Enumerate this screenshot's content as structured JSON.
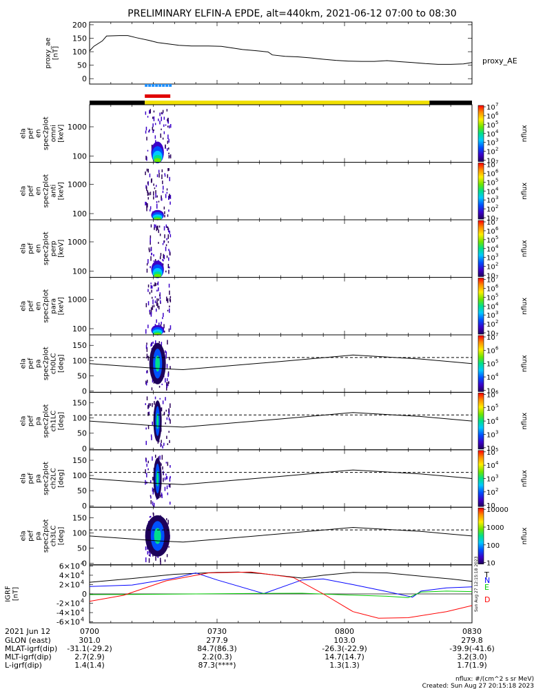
{
  "page": {
    "title": "PRELIMINARY ELFIN-A EPDE, alt=440km, 2021-06-12 07:00 to 08:30",
    "footer_units": "nflux: #/(cm^2 s sr MeV)",
    "footer_created": "Created: Sun Aug 27 20:15:18 2023",
    "side_stamp": "Sun Aug 27 12:15:18 2023"
  },
  "colors": {
    "ae_line": "#000000",
    "sci_zone_bar": "#1e90ff",
    "fgm_bar": "#e00000",
    "orbit_day": "#f0e000",
    "orbit_night": "#000000",
    "igrf_T": "#000000",
    "igrf_N": "#0000ff",
    "igrf_E": "#00cc00",
    "igrf_D": "#ff0000"
  },
  "chart_data": {
    "type": "multi-panel",
    "time_axis": {
      "start": "07:00",
      "end": "08:30",
      "tick_times": [
        "07:00",
        "07:30",
        "08:00",
        "08:30"
      ],
      "tick_labels": [
        "0700",
        "0730",
        "0800",
        "0830"
      ]
    },
    "science_window": [
      "07:13",
      "07:19"
    ],
    "orbit_day_interval": [
      "07:13",
      "08:20"
    ],
    "ae": {
      "ylabel": [
        "proxy_ae",
        "[nT]"
      ],
      "series_name": "proxy_AE",
      "ylim": [
        -20,
        210
      ],
      "yticks": [
        0,
        50,
        100,
        150,
        200
      ],
      "t_min": [
        0,
        1,
        3,
        4,
        7,
        9,
        11,
        14,
        16,
        19,
        21,
        24,
        28,
        31,
        34,
        36,
        39,
        42,
        43,
        46,
        49,
        52,
        55,
        58,
        61,
        64,
        67,
        70,
        73,
        76,
        79,
        82,
        85,
        88,
        90
      ],
      "values": [
        103,
        120,
        140,
        158,
        160,
        160,
        152,
        142,
        134,
        128,
        124,
        121,
        121,
        120,
        113,
        108,
        104,
        99,
        88,
        83,
        81,
        77,
        72,
        68,
        65,
        64,
        64,
        67,
        63,
        60,
        56,
        53,
        53,
        55,
        60
      ]
    },
    "spectrograms": [
      {
        "ylabel": [
          "ela",
          "pef",
          "en",
          "spec2plot",
          "omni",
          "[keV]"
        ],
        "yticks": [
          "100",
          "1000"
        ],
        "cbar_label": "nflux",
        "cbar_ticks": [
          "10",
          "2",
          "3",
          "4",
          "5",
          "6",
          "7"
        ],
        "cbar_style": "power"
      },
      {
        "ylabel": [
          "ela",
          "pef",
          "en",
          "spec2plot",
          "anti",
          "[keV]"
        ],
        "yticks": [
          "100",
          "1000"
        ],
        "cbar_label": "nflux",
        "cbar_ticks": [
          "10",
          "2",
          "3",
          "4",
          "5",
          "6",
          "7"
        ],
        "cbar_style": "power"
      },
      {
        "ylabel": [
          "ela",
          "pef",
          "en",
          "spec2plot",
          "perp",
          "[keV]"
        ],
        "yticks": [
          "100",
          "1000"
        ],
        "cbar_label": "nflux",
        "cbar_ticks": [
          "10",
          "2",
          "3",
          "4",
          "5",
          "6",
          "7"
        ],
        "cbar_style": "power"
      },
      {
        "ylabel": [
          "ela",
          "pef",
          "en",
          "spec2plot",
          "para",
          "[keV]"
        ],
        "yticks": [
          "100",
          "1000"
        ],
        "cbar_label": "nflux",
        "cbar_ticks": [
          "10",
          "2",
          "3",
          "4",
          "5",
          "6",
          "7"
        ],
        "cbar_style": "power"
      }
    ],
    "pitch_angle_panels": [
      {
        "ylabel": [
          "ela",
          "pef",
          "pa",
          "spec2plot",
          "ch0LC",
          "[deg]"
        ],
        "yticks": [
          0,
          50,
          100,
          150
        ],
        "cbar_label": "nflux",
        "cbar_ticks": [
          "10",
          "4",
          "5",
          "6",
          "7"
        ],
        "cbar_style": "power"
      },
      {
        "ylabel": [
          "ela",
          "pef",
          "pa",
          "spec2plot",
          "ch1LC",
          "[deg]"
        ],
        "yticks": [
          0,
          50,
          100,
          150
        ],
        "cbar_label": "nflux",
        "cbar_ticks": [
          "10",
          "3",
          "4",
          "5",
          "6"
        ],
        "cbar_style": "power"
      },
      {
        "ylabel": [
          "ela",
          "pef",
          "pa",
          "spec2plot",
          "ch2LC",
          "[deg]"
        ],
        "yticks": [
          0,
          50,
          100,
          150
        ],
        "cbar_label": "nflux",
        "cbar_ticks": [
          "10",
          "2",
          "3",
          "4",
          "5"
        ],
        "cbar_style": "power"
      },
      {
        "ylabel": [
          "ela",
          "pef",
          "pa",
          "spec2plot",
          "ch3LC",
          "[deg]"
        ],
        "yticks": [
          0,
          50,
          100,
          150
        ],
        "cbar_label": "nflux",
        "cbar_ticks": [
          "10",
          "100",
          "1000",
          "10000"
        ],
        "cbar_style": "plain"
      }
    ],
    "pa_loss_cone_solid": {
      "t_min": [
        0,
        10,
        16,
        22,
        45,
        62,
        78,
        90
      ],
      "values": [
        90,
        80,
        74,
        70,
        97,
        118,
        105,
        90
      ]
    },
    "pa_loss_cone_dashed_deg": 110,
    "igrf": {
      "ylabel": [
        "IGRF",
        "[nT]"
      ],
      "ytick_mantissa": [
        "-6",
        "-4",
        "-2",
        "0",
        "2",
        "4",
        "6"
      ],
      "ytick_base": "10",
      "ytick_exp": "4",
      "ylim": [
        -62000,
        62000
      ],
      "components": [
        {
          "name": "T",
          "t_min": [
            0,
            10,
            20,
            30,
            35,
            40,
            50,
            55,
            62,
            70,
            78,
            85,
            90
          ],
          "values": [
            25000,
            33000,
            42000,
            46000,
            47000,
            44000,
            34000,
            40000,
            46000,
            45000,
            38000,
            32000,
            27000
          ]
        },
        {
          "name": "N",
          "t_min": [
            0,
            10,
            20,
            25,
            30,
            41,
            50,
            55,
            62,
            70,
            76,
            78,
            84,
            90
          ],
          "values": [
            16000,
            19000,
            34000,
            45000,
            30000,
            800,
            30000,
            32000,
            20000,
            5000,
            -7000,
            6000,
            13000,
            15000
          ]
        },
        {
          "name": "E",
          "t_min": [
            0,
            10,
            20,
            30,
            40,
            50,
            60,
            70,
            75,
            78,
            84,
            90
          ],
          "values": [
            -1500,
            -1000,
            -400,
            300,
            1000,
            1500,
            -2000,
            -5000,
            -8000,
            4000,
            6000,
            5000
          ]
        },
        {
          "name": "D",
          "t_min": [
            0,
            8,
            18,
            28,
            38,
            48,
            55,
            62,
            68,
            75,
            84,
            90
          ],
          "values": [
            -16000,
            -3000,
            28000,
            45000,
            47000,
            35000,
            0,
            -38000,
            -52000,
            -51000,
            -38000,
            -25000
          ]
        }
      ]
    },
    "ephemeris": {
      "header": "2021 Jun 12",
      "rows": [
        {
          "label": "GLON (east)",
          "values": [
            "301.0",
            "277.9",
            "103.0",
            "279.8"
          ]
        },
        {
          "label": "MLAT-igrf(dip)",
          "values": [
            "-31.1(-29.2)",
            "84.7(86.3)",
            "-26.3(-22.9)",
            "-39.9(-41.6)"
          ]
        },
        {
          "label": "MLT-igrf(dip)",
          "values": [
            "2.7(2.9)",
            "2.2(0.3)",
            "14.7(14.7)",
            "3.2(3.0)"
          ]
        },
        {
          "label": "L-igrf(dip)",
          "values": [
            "1.4(1.4)",
            "87.3(****)",
            "1.3(1.3)",
            "1.7(1.9)"
          ]
        }
      ]
    }
  }
}
